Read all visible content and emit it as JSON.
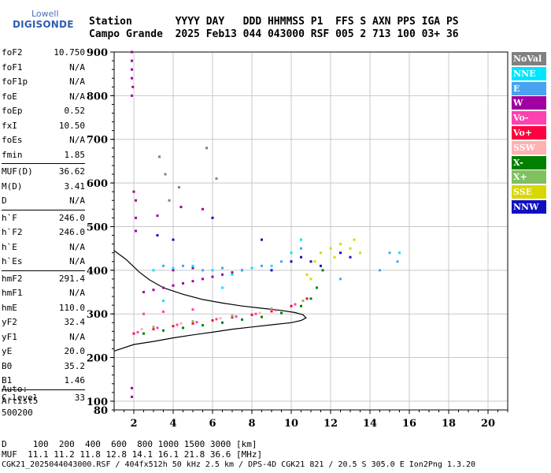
{
  "logo": {
    "line1": "Lowell",
    "line2": "DIGISONDE"
  },
  "header": {
    "row1": "Station       YYYY DAY   DDD HHMMSS P1  FFS S AXN PPS IGA PS",
    "row2": "Campo Grande  2025 Feb13 044 043000 RSF 005 2 713 100 03+ 36"
  },
  "params": {
    "group1": [
      {
        "k": "foF2",
        "v": "10.750"
      },
      {
        "k": "foF1",
        "v": "N/A"
      },
      {
        "k": "foF1p",
        "v": "N/A"
      },
      {
        "k": "foE",
        "v": "N/A"
      },
      {
        "k": "foEp",
        "v": "0.52"
      },
      {
        "k": "fxI",
        "v": "10.50"
      },
      {
        "k": "foEs",
        "v": "N/A"
      },
      {
        "k": "fmin",
        "v": "1.85"
      }
    ],
    "group2": [
      {
        "k": "MUF(D)",
        "v": "36.62"
      },
      {
        "k": "M(D)",
        "v": "3.41"
      },
      {
        "k": "D",
        "v": "N/A"
      }
    ],
    "group3": [
      {
        "k": "h`F",
        "v": "246.0"
      },
      {
        "k": "h`F2",
        "v": "246.0"
      },
      {
        "k": "h`E",
        "v": "N/A"
      },
      {
        "k": "h`Es",
        "v": "N/A"
      }
    ],
    "group4": [
      {
        "k": "hmF2",
        "v": "291.4"
      },
      {
        "k": "hmF1",
        "v": "N/A"
      },
      {
        "k": "hmE",
        "v": "110.0"
      },
      {
        "k": "yF2",
        "v": "32.4"
      },
      {
        "k": "yF1",
        "v": "N/A"
      },
      {
        "k": "yE",
        "v": "20.0"
      },
      {
        "k": "B0",
        "v": "35.2"
      },
      {
        "k": "B1",
        "v": "1.46"
      }
    ],
    "group5": [
      {
        "k": "C-level",
        "v": "33"
      }
    ]
  },
  "auto": {
    "line1": "Auto:",
    "line2": "Artist5",
    "line3": "500200"
  },
  "legend": [
    {
      "label": "NoVal",
      "color": "#808080"
    },
    {
      "label": "NNE",
      "color": "#00e5ff"
    },
    {
      "label": "E",
      "color": "#4aa3f0"
    },
    {
      "label": "W",
      "color": "#a000a0"
    },
    {
      "label": "Vo-",
      "color": "#ff40b0"
    },
    {
      "label": "Vo+",
      "color": "#ff0040"
    },
    {
      "label": "SSW",
      "color": "#ffb0b0"
    },
    {
      "label": "X-",
      "color": "#008000"
    },
    {
      "label": "X+",
      "color": "#80c060"
    },
    {
      "label": "SSE",
      "color": "#d8d800"
    },
    {
      "label": "NNW",
      "color": "#1010c0"
    }
  ],
  "footer": {
    "line1": "D     100  200  400  600  800 1000 1500 3000 [km]",
    "line2": "MUF  11.1 11.2 11.8 12.8 14.1 16.1 21.8 36.6 [MHz]",
    "line3": "CGK21_2025044043000.RSF / 404fx512h 50 kHz 2.5 km / DPS-4D CGK21 821 / 20.5 S 305.0 E Ion2Png 1.3.20"
  },
  "chart_data": {
    "type": "scatter",
    "title": "",
    "xlabel": "",
    "ylabel": "",
    "xlim": [
      1,
      21
    ],
    "ylim": [
      80,
      900
    ],
    "xticks": [
      2,
      4,
      6,
      8,
      10,
      12,
      14,
      16,
      18,
      20
    ],
    "yticks": [
      100,
      200,
      300,
      400,
      500,
      600,
      700,
      800,
      900
    ],
    "grid": true,
    "series": [
      {
        "name": "W",
        "color": "#a000a0",
        "points": [
          [
            1.9,
            900
          ],
          [
            1.9,
            880
          ],
          [
            1.9,
            860
          ],
          [
            1.9,
            840
          ],
          [
            1.95,
            820
          ],
          [
            1.9,
            800
          ],
          [
            2.0,
            580
          ],
          [
            2.1,
            560
          ],
          [
            2.1,
            520
          ],
          [
            2.1,
            490
          ],
          [
            1.9,
            130
          ],
          [
            1.9,
            110
          ],
          [
            2.5,
            350
          ],
          [
            3.0,
            355
          ],
          [
            3.5,
            360
          ],
          [
            4.0,
            365
          ],
          [
            4.5,
            370
          ],
          [
            5.0,
            375
          ],
          [
            5.5,
            380
          ],
          [
            6.0,
            385
          ],
          [
            6.5,
            390
          ],
          [
            7.0,
            395
          ],
          [
            7.5,
            400
          ],
          [
            3.2,
            525
          ],
          [
            4.4,
            545
          ],
          [
            5.5,
            540
          ],
          [
            4.0,
            400
          ],
          [
            5.0,
            405
          ]
        ]
      },
      {
        "name": "NNE",
        "color": "#00e5ff",
        "points": [
          [
            3.0,
            400
          ],
          [
            4.0,
            405
          ],
          [
            5.0,
            410
          ],
          [
            6.0,
            400
          ],
          [
            7.0,
            390
          ],
          [
            8.0,
            405
          ],
          [
            9.0,
            410
          ],
          [
            10.0,
            440
          ],
          [
            10.5,
            470
          ],
          [
            3.5,
            330
          ],
          [
            6.5,
            360
          ],
          [
            15.5,
            440
          ]
        ]
      },
      {
        "name": "E",
        "color": "#4aa3f0",
        "points": [
          [
            3.5,
            410
          ],
          [
            4.5,
            410
          ],
          [
            5.5,
            400
          ],
          [
            6.5,
            405
          ],
          [
            7.5,
            400
          ],
          [
            8.5,
            410
          ],
          [
            9.5,
            420
          ],
          [
            10.5,
            450
          ],
          [
            14.5,
            400
          ],
          [
            15.0,
            440
          ],
          [
            15.4,
            420
          ],
          [
            12.5,
            380
          ]
        ]
      },
      {
        "name": "NNW",
        "color": "#1010c0",
        "points": [
          [
            10.0,
            420
          ],
          [
            10.5,
            430
          ],
          [
            11.0,
            420
          ],
          [
            11.5,
            410
          ],
          [
            9.0,
            400
          ],
          [
            3.2,
            480
          ],
          [
            4.0,
            470
          ],
          [
            6.0,
            520
          ],
          [
            8.5,
            470
          ],
          [
            12.5,
            440
          ],
          [
            13.0,
            430
          ]
        ]
      },
      {
        "name": "SSE",
        "color": "#d8d800",
        "points": [
          [
            11.5,
            440
          ],
          [
            12.0,
            450
          ],
          [
            12.5,
            460
          ],
          [
            13.0,
            450
          ],
          [
            13.5,
            440
          ],
          [
            11.2,
            420
          ],
          [
            12.2,
            430
          ],
          [
            10.8,
            390
          ],
          [
            11.0,
            380
          ],
          [
            13.2,
            470
          ]
        ]
      },
      {
        "name": "Vo+",
        "color": "#ff0040",
        "points": [
          [
            2.0,
            255
          ],
          [
            3.0,
            265
          ],
          [
            4.0,
            272
          ],
          [
            5.0,
            278
          ],
          [
            6.0,
            285
          ],
          [
            7.0,
            292
          ],
          [
            8.0,
            298
          ],
          [
            9.0,
            306
          ],
          [
            10.0,
            318
          ],
          [
            10.8,
            335
          ]
        ]
      },
      {
        "name": "Vo-",
        "color": "#ff40b0",
        "points": [
          [
            2.2,
            258
          ],
          [
            3.2,
            268
          ],
          [
            4.2,
            275
          ],
          [
            5.2,
            281
          ],
          [
            6.2,
            288
          ],
          [
            7.2,
            294
          ],
          [
            8.2,
            300
          ],
          [
            9.2,
            309
          ],
          [
            10.2,
            322
          ],
          [
            2.5,
            300
          ],
          [
            3.5,
            305
          ],
          [
            5.0,
            310
          ]
        ]
      },
      {
        "name": "X-",
        "color": "#008000",
        "points": [
          [
            2.5,
            255
          ],
          [
            3.5,
            262
          ],
          [
            4.5,
            268
          ],
          [
            5.5,
            274
          ],
          [
            6.5,
            280
          ],
          [
            7.5,
            287
          ],
          [
            8.5,
            293
          ],
          [
            9.5,
            302
          ],
          [
            10.5,
            318
          ],
          [
            11.0,
            335
          ],
          [
            11.3,
            360
          ],
          [
            11.6,
            400
          ]
        ]
      },
      {
        "name": "X+",
        "color": "#80c060",
        "points": [
          [
            3.0,
            270
          ],
          [
            5.0,
            283
          ],
          [
            7.0,
            296
          ],
          [
            9.0,
            312
          ],
          [
            10.6,
            330
          ]
        ]
      },
      {
        "name": "SSW",
        "color": "#ffb0b0",
        "points": [
          [
            2.4,
            265
          ],
          [
            4.4,
            278
          ],
          [
            6.4,
            290
          ],
          [
            8.4,
            302
          ]
        ]
      },
      {
        "name": "NoVal",
        "color": "#808080",
        "points": [
          [
            3.3,
            660
          ],
          [
            3.6,
            620
          ],
          [
            4.3,
            590
          ],
          [
            5.7,
            680
          ],
          [
            6.2,
            610
          ],
          [
            3.8,
            560
          ]
        ]
      }
    ],
    "profile": [
      [
        1.0,
        215
      ],
      [
        2.0,
        230
      ],
      [
        3.0,
        237
      ],
      [
        4.0,
        245
      ],
      [
        5.0,
        252
      ],
      [
        6.0,
        258
      ],
      [
        7.0,
        265
      ],
      [
        8.0,
        270
      ],
      [
        9.0,
        275
      ],
      [
        10.0,
        280
      ],
      [
        10.5,
        285
      ],
      [
        10.75,
        291
      ],
      [
        10.6,
        298
      ],
      [
        10.2,
        303
      ],
      [
        9.5,
        308
      ],
      [
        8.5,
        313
      ],
      [
        7.5,
        318
      ],
      [
        6.5,
        325
      ],
      [
        5.5,
        333
      ],
      [
        4.5,
        345
      ],
      [
        3.5,
        360
      ],
      [
        2.8,
        378
      ],
      [
        2.3,
        395
      ],
      [
        1.6,
        425
      ],
      [
        1.0,
        445
      ]
    ]
  }
}
